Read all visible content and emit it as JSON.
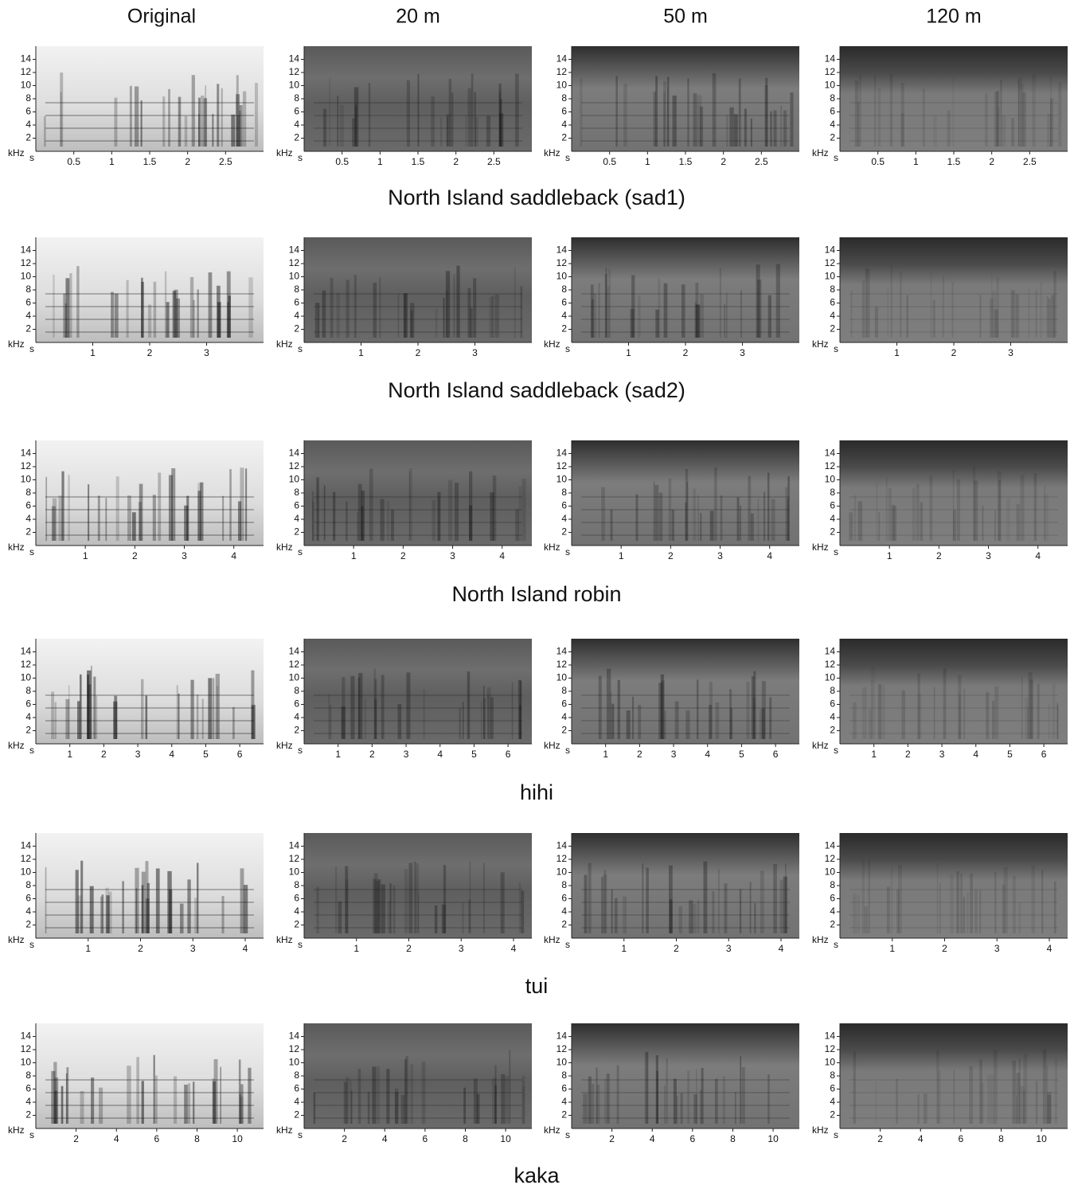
{
  "columns": [
    "Original",
    "20 m",
    "50 m",
    "120 m"
  ],
  "y_axis": {
    "unit": "kHz",
    "ylim": [
      0,
      16
    ],
    "ticks": [
      2,
      4,
      6,
      8,
      10,
      12,
      14
    ]
  },
  "x_unit": "s",
  "rows": [
    {
      "label": "North Island saddleback (sad1)",
      "xlim": [
        0,
        3
      ],
      "xticks": [
        0.5,
        1,
        1.5,
        2,
        2.5
      ]
    },
    {
      "label": "North Island saddleback (sad2)",
      "xlim": [
        0,
        4
      ],
      "xticks": [
        1,
        2,
        3
      ]
    },
    {
      "label": "North Island robin",
      "xlim": [
        0,
        4.6
      ],
      "xticks": [
        1,
        2,
        3,
        4
      ]
    },
    {
      "label": "hihi",
      "xlim": [
        0,
        6.7
      ],
      "xticks": [
        1,
        2,
        3,
        4,
        5,
        6
      ]
    },
    {
      "label": "tui",
      "xlim": [
        0,
        4.35
      ],
      "xticks": [
        1,
        2,
        3,
        4
      ]
    },
    {
      "label": "kaka",
      "xlim": [
        0,
        11.3
      ],
      "xticks": [
        2,
        4,
        6,
        8,
        10
      ]
    }
  ]
}
